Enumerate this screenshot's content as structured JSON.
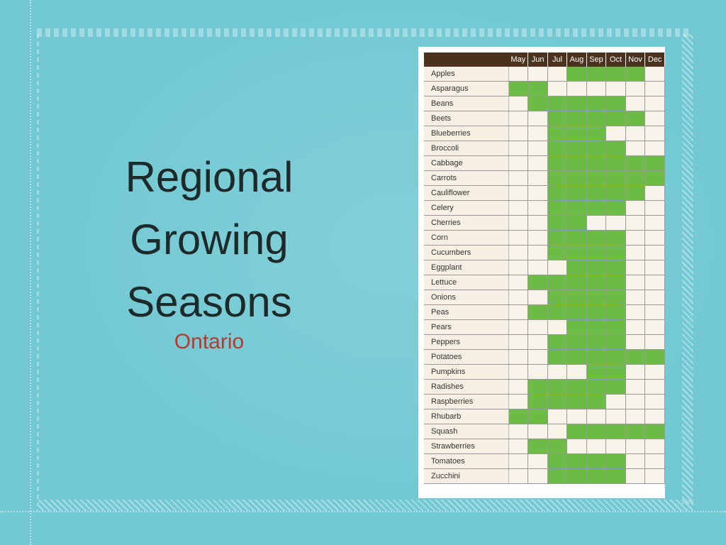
{
  "slide": {
    "title_lines": [
      "Regional",
      "Growing",
      "Seasons"
    ],
    "subtitle": "Ontario"
  },
  "colors": {
    "background": "#72c9d3",
    "header": "#4b321f",
    "in_season": "#6cbb45",
    "out_of_season": "#f7f3e8",
    "subtitle": "#b53a2f"
  },
  "chart_data": {
    "type": "table",
    "columns": [
      "May",
      "Jun",
      "Jul",
      "Aug",
      "Sep",
      "Oct",
      "Nov",
      "Dec"
    ],
    "rows": [
      {
        "name": "Apples",
        "months": [
          0,
          0,
          0,
          1,
          1,
          1,
          1,
          0
        ]
      },
      {
        "name": "Asparagus",
        "months": [
          1,
          1,
          0,
          0,
          0,
          0,
          0,
          0
        ]
      },
      {
        "name": "Beans",
        "months": [
          0,
          1,
          1,
          1,
          1,
          1,
          0,
          0
        ]
      },
      {
        "name": "Beets",
        "months": [
          0,
          0,
          1,
          1,
          1,
          1,
          1,
          0
        ]
      },
      {
        "name": "Blueberries",
        "months": [
          0,
          0,
          1,
          1,
          1,
          0,
          0,
          0
        ]
      },
      {
        "name": "Broccoli",
        "months": [
          0,
          0,
          1,
          1,
          1,
          1,
          0,
          0
        ]
      },
      {
        "name": "Cabbage",
        "months": [
          0,
          0,
          1,
          1,
          1,
          1,
          1,
          1
        ]
      },
      {
        "name": "Carrots",
        "months": [
          0,
          0,
          1,
          1,
          1,
          1,
          1,
          1
        ]
      },
      {
        "name": "Cauliflower",
        "months": [
          0,
          0,
          1,
          1,
          1,
          1,
          1,
          0
        ]
      },
      {
        "name": "Celery",
        "months": [
          0,
          0,
          1,
          1,
          1,
          1,
          0,
          0
        ]
      },
      {
        "name": "Cherries",
        "months": [
          0,
          0,
          1,
          1,
          0,
          0,
          0,
          0
        ]
      },
      {
        "name": "Corn",
        "months": [
          0,
          0,
          1,
          1,
          1,
          1,
          0,
          0
        ]
      },
      {
        "name": "Cucumbers",
        "months": [
          0,
          0,
          1,
          1,
          1,
          1,
          0,
          0
        ]
      },
      {
        "name": "Eggplant",
        "months": [
          0,
          0,
          0,
          1,
          1,
          1,
          0,
          0
        ]
      },
      {
        "name": "Lettuce",
        "months": [
          0,
          1,
          1,
          1,
          1,
          1,
          0,
          0
        ]
      },
      {
        "name": "Onions",
        "months": [
          0,
          0,
          1,
          1,
          1,
          1,
          0,
          0
        ]
      },
      {
        "name": "Peas",
        "months": [
          0,
          1,
          1,
          1,
          1,
          1,
          0,
          0
        ]
      },
      {
        "name": "Pears",
        "months": [
          0,
          0,
          0,
          1,
          1,
          1,
          0,
          0
        ]
      },
      {
        "name": "Peppers",
        "months": [
          0,
          0,
          1,
          1,
          1,
          1,
          0,
          0
        ]
      },
      {
        "name": "Potatoes",
        "months": [
          0,
          0,
          1,
          1,
          1,
          1,
          1,
          1
        ]
      },
      {
        "name": "Pumpkins",
        "months": [
          0,
          0,
          0,
          0,
          1,
          1,
          0,
          0
        ]
      },
      {
        "name": "Radishes",
        "months": [
          0,
          1,
          1,
          1,
          1,
          1,
          0,
          0
        ]
      },
      {
        "name": "Raspberries",
        "months": [
          0,
          1,
          1,
          1,
          1,
          0,
          0,
          0
        ]
      },
      {
        "name": "Rhubarb",
        "months": [
          1,
          1,
          0,
          0,
          0,
          0,
          0,
          0
        ]
      },
      {
        "name": "Squash",
        "months": [
          0,
          0,
          0,
          1,
          1,
          1,
          1,
          1
        ]
      },
      {
        "name": "Strawberries",
        "months": [
          0,
          1,
          1,
          0,
          0,
          0,
          0,
          0
        ]
      },
      {
        "name": "Tomatoes",
        "months": [
          0,
          0,
          1,
          1,
          1,
          1,
          0,
          0
        ]
      },
      {
        "name": "Zucchini",
        "months": [
          0,
          0,
          1,
          1,
          1,
          1,
          0,
          0
        ]
      }
    ]
  }
}
